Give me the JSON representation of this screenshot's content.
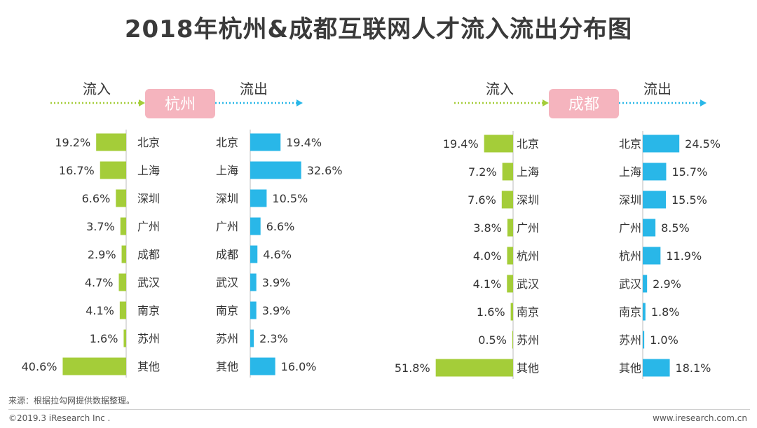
{
  "title": "2018年杭州&成都互联网人才流入流出分布图",
  "footer": {
    "source": "来源：根据拉勾网提供数据整理。",
    "copyright": "©2019.3 iResearch Inc .",
    "website": "www.iresearch.com.cn"
  },
  "colors": {
    "inflow": "#a4cd39",
    "outflow": "#29b7e8",
    "hub_bg": "#f5b4be",
    "arrow_in": "#a4cd39",
    "arrow_out": "#29b7e8",
    "text": "#333333"
  },
  "chart_data": [
    {
      "type": "bar",
      "hub": "杭州",
      "inflow_label": "流入",
      "outflow_label": "流出",
      "unit": "%",
      "categories_inflow": [
        "北京",
        "上海",
        "深圳",
        "广州",
        "成都",
        "武汉",
        "南京",
        "苏州",
        "其他"
      ],
      "categories_outflow": [
        "北京",
        "上海",
        "深圳",
        "广州",
        "成都",
        "武汉",
        "南京",
        "苏州",
        "其他"
      ],
      "series": [
        {
          "name": "流入",
          "values": [
            19.2,
            16.7,
            6.6,
            3.7,
            2.9,
            4.7,
            4.1,
            1.6,
            40.6
          ]
        },
        {
          "name": "流出",
          "values": [
            19.4,
            32.6,
            10.5,
            6.6,
            4.6,
            3.9,
            3.9,
            2.3,
            16.0
          ]
        }
      ]
    },
    {
      "type": "bar",
      "hub": "成都",
      "inflow_label": "流入",
      "outflow_label": "流出",
      "unit": "%",
      "categories_inflow": [
        "北京",
        "上海",
        "深圳",
        "广州",
        "杭州",
        "武汉",
        "南京",
        "苏州",
        "其他"
      ],
      "categories_outflow": [
        "北京",
        "上海",
        "深圳",
        "广州",
        "杭州",
        "武汉",
        "南京",
        "苏州",
        "其他"
      ],
      "series": [
        {
          "name": "流入",
          "values": [
            19.4,
            7.2,
            7.6,
            3.8,
            4.0,
            4.1,
            1.6,
            0.5,
            51.8
          ]
        },
        {
          "name": "流出",
          "values": [
            24.5,
            15.7,
            15.5,
            8.5,
            11.9,
            2.9,
            1.8,
            1.0,
            18.1
          ]
        }
      ]
    }
  ]
}
